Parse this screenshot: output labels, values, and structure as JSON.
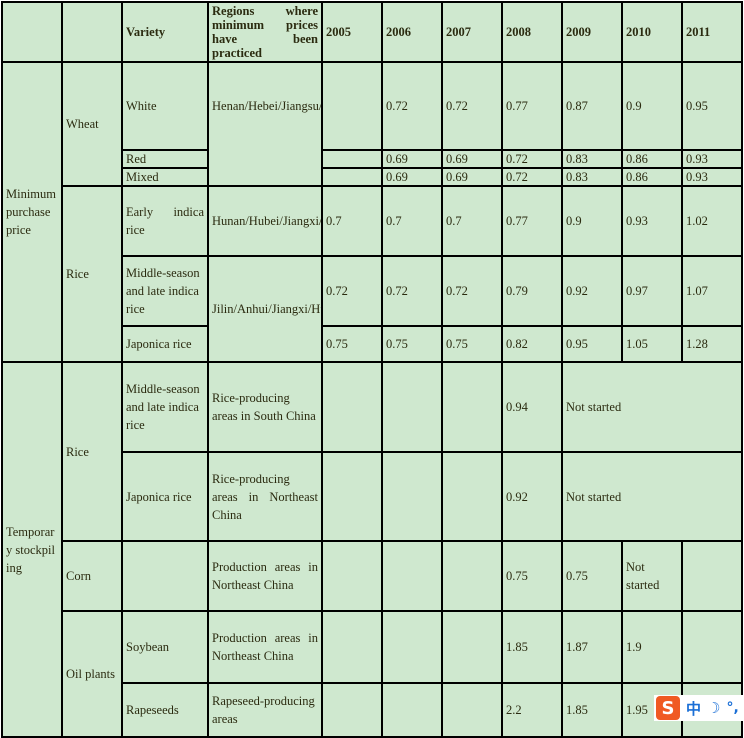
{
  "header": {
    "variety": "Variety",
    "regions": "Regions where minimum prices have been practiced",
    "years": [
      "2005",
      "2006",
      "2007",
      "2008",
      "2009",
      "2010",
      "2011"
    ]
  },
  "minimum": {
    "label": "Minimum purchase price",
    "wheat": {
      "label": "Wheat",
      "region": "Henan/Hebei/Jiangsu/Anhui/Shandong/Hubei",
      "rows": [
        {
          "variety": "White",
          "values": [
            "",
            "0.72",
            "0.72",
            "0.77",
            "0.87",
            "0.9",
            "0.95"
          ]
        },
        {
          "variety": "Red",
          "values": [
            "",
            "0.69",
            "0.69",
            "0.72",
            "0.83",
            "0.86",
            "0.93"
          ]
        },
        {
          "variety": "Mixed",
          "values": [
            "",
            "0.69",
            "0.69",
            "0.72",
            "0.83",
            "0.86",
            "0.93"
          ]
        }
      ]
    },
    "rice": {
      "label": "Rice",
      "rows": [
        {
          "variety": "Early indica rice",
          "region": "Hunan/Hubei/Jiangxi/Anhui/Guangxi",
          "values": [
            "0.7",
            "0.7",
            "0.7",
            "0.77",
            "0.9",
            "0.93",
            "1.02"
          ]
        },
        {
          "variety": "Middle-season and late indica rice",
          "region": "Jilin/Anhui/Jiangxi/Hubei/Hunan/Sichuan/Heilongjiang/Liaoning/Jiangsu/Guangxi/Henan",
          "values": [
            "0.72",
            "0.72",
            "0.72",
            "0.79",
            "0.92",
            "0.97",
            "1.07"
          ]
        },
        {
          "variety": "Japonica rice",
          "values": [
            "0.75",
            "0.75",
            "0.75",
            "0.82",
            "0.95",
            "1.05",
            "1.28"
          ]
        }
      ]
    }
  },
  "temporary": {
    "label": "Temporary stockpiling",
    "rice": {
      "label": "Rice",
      "rows": [
        {
          "variety": "Middle-season and late indica rice",
          "region": "Rice-producing areas in South China",
          "v2008": "0.94",
          "rest": "Not started"
        },
        {
          "variety": "Japonica rice",
          "region": "Rice-producing areas in Northeast China",
          "v2008": "0.92",
          "rest": "Not started"
        }
      ]
    },
    "corn": {
      "label": "Corn",
      "region": "Production areas in Northeast China",
      "v2008": "0.75",
      "v2009": "0.75",
      "v2010": "Not started"
    },
    "oil": {
      "label": "Oil plants",
      "rows": [
        {
          "variety": "Soybean",
          "region": "Production areas in Northeast China",
          "v2008": "1.85",
          "v2009": "1.87",
          "v2010": "1.9"
        },
        {
          "variety": "Rapeseeds",
          "region": "Rapeseed-producing areas",
          "v2008": "2.2",
          "v2009": "1.85",
          "v2010": "1.95"
        }
      ]
    }
  },
  "ime": {
    "logo": "S",
    "lang": "中",
    "mode": "☽",
    "punct": "°,"
  }
}
